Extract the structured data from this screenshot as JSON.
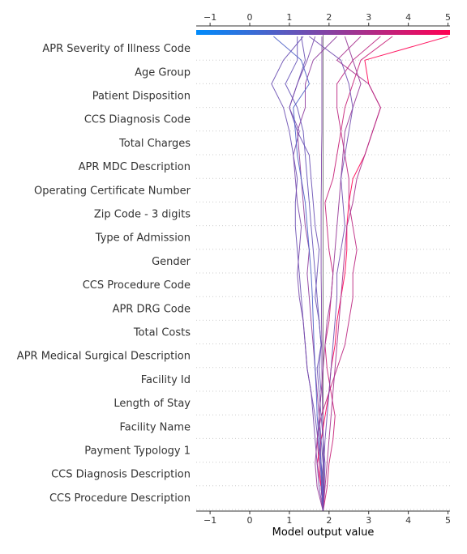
{
  "chart_data": {
    "type": "line",
    "subtype": "shap-decision-plot",
    "xlabel": "Model output value",
    "xlim": [
      -1.35,
      5.05
    ],
    "xticks": [
      -1,
      0,
      1,
      2,
      3,
      4,
      5
    ],
    "base_value": 1.85,
    "colormap": [
      "#008bfb",
      "#ff0052"
    ],
    "features": [
      "APR Severity of Illness Code",
      "Age Group",
      "Patient Disposition",
      "CCS Diagnosis Code",
      "Total Charges",
      "APR MDC Description",
      "Operating Certificate Number",
      "Zip Code - 3 digits",
      "Type of Admission",
      "Gender",
      "CCS Procedure Code",
      "APR DRG Code",
      "Total Costs",
      "APR Medical Surgical Description",
      "Facility Id",
      "Length of Stay",
      "Facility Name",
      "Payment Typology 1",
      "CCS Diagnosis Description",
      "CCS Procedure Description"
    ],
    "series": [
      {
        "values": [
          1.85,
          1.87,
          1.86,
          1.85,
          1.84,
          1.83,
          1.82,
          1.82,
          1.81,
          1.81,
          1.8,
          1.8,
          1.8,
          1.8,
          1.81,
          1.81,
          1.82,
          1.82,
          1.82,
          1.82,
          1.82
        ]
      },
      {
        "values": [
          1.85,
          1.95,
          2.0,
          2.1,
          2.15,
          2.05,
          1.95,
          1.9,
          2.0,
          2.05,
          2.1,
          2.0,
          1.95,
          1.9,
          2.1,
          2.2,
          2.3,
          2.4,
          2.6,
          2.8,
          3.6
        ]
      },
      {
        "values": [
          1.85,
          1.8,
          1.75,
          1.7,
          1.8,
          2.0,
          2.2,
          2.4,
          2.5,
          2.6,
          2.6,
          2.7,
          2.6,
          2.5,
          2.5,
          2.4,
          2.3,
          2.2,
          2.2,
          2.6,
          3.3
        ]
      },
      {
        "values": [
          1.85,
          1.8,
          1.7,
          1.8,
          1.9,
          2.0,
          2.05,
          2.15,
          2.2,
          2.3,
          2.4,
          2.45,
          2.45,
          2.5,
          2.6,
          2.9,
          3.1,
          3.3,
          3.0,
          2.9,
          5.0
        ]
      },
      {
        "values": [
          1.85,
          1.88,
          1.9,
          1.85,
          1.8,
          1.75,
          1.7,
          1.8,
          1.75,
          1.65,
          1.7,
          1.75,
          1.65,
          1.6,
          1.55,
          1.5,
          1.2,
          1.0,
          1.2,
          1.4,
          1.3
        ]
      },
      {
        "values": [
          1.85,
          1.85,
          1.8,
          1.78,
          1.75,
          1.7,
          1.65,
          1.6,
          1.55,
          1.5,
          1.45,
          1.5,
          1.4,
          1.35,
          1.3,
          1.25,
          1.2,
          1.4,
          1.4,
          1.6,
          2.2
        ]
      },
      {
        "values": [
          1.85,
          1.8,
          1.85,
          1.8,
          1.75,
          1.8,
          1.75,
          1.8,
          1.75,
          1.7,
          1.65,
          1.6,
          1.55,
          1.5,
          1.45,
          1.4,
          1.35,
          1.2,
          0.9,
          1.2,
          1.2
        ]
      },
      {
        "values": [
          1.85,
          1.82,
          1.78,
          1.72,
          1.65,
          1.55,
          1.45,
          1.4,
          1.35,
          1.3,
          1.25,
          1.2,
          1.15,
          1.15,
          1.2,
          1.1,
          1.0,
          0.85,
          0.55,
          0.85,
          1.35
        ]
      },
      {
        "values": [
          1.85,
          1.9,
          1.95,
          2.0,
          2.05,
          2.1,
          2.15,
          2.2,
          2.25,
          2.3,
          2.35,
          2.4,
          2.45,
          2.6,
          2.7,
          2.9,
          3.1,
          3.3,
          3.0,
          2.2,
          2.8
        ]
      },
      {
        "values": [
          1.85,
          1.75,
          1.7,
          1.65,
          1.6,
          1.55,
          1.45,
          1.4,
          1.35,
          1.25,
          1.2,
          1.25,
          1.3,
          1.2,
          1.15,
          1.1,
          1.25,
          1.0,
          1.2,
          1.45,
          1.65
        ]
      },
      {
        "values": [
          1.85,
          1.7,
          1.65,
          1.7,
          1.75,
          1.8,
          1.85,
          1.9,
          1.95,
          2.05,
          2.1,
          2.15,
          2.2,
          2.25,
          2.3,
          2.35,
          2.4,
          2.6,
          2.8,
          2.6,
          2.4
        ]
      },
      {
        "values": [
          1.85,
          1.83,
          1.8,
          1.75,
          1.7,
          1.68,
          1.65,
          1.62,
          1.6,
          1.58,
          1.55,
          1.5,
          1.45,
          1.4,
          1.3,
          1.2,
          1.15,
          1.1,
          1.5,
          1.3,
          0.6
        ]
      },
      {
        "values": [
          1.85,
          1.86,
          1.87,
          1.9,
          1.95,
          2.0,
          2.05,
          2.1,
          2.15,
          2.2,
          2.2,
          2.3,
          2.4,
          2.35,
          2.3,
          2.4,
          2.5,
          2.6,
          2.5,
          2.3,
          1.5
        ]
      }
    ]
  }
}
